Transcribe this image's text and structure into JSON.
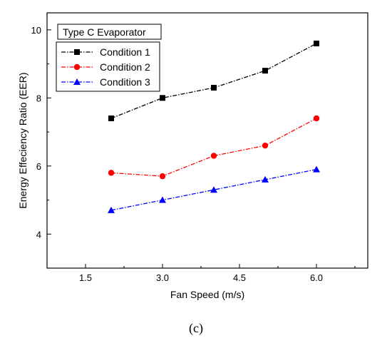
{
  "caption": "(c)",
  "chart_data": {
    "type": "line",
    "title": "",
    "panel_label": "Type C Evaporator",
    "xlabel": "Fan Speed (m/s)",
    "ylabel": "Energy Effeciency Ratio (EER)",
    "xlim": [
      0.75,
      7.0
    ],
    "ylim": [
      3.0,
      10.5
    ],
    "xticks": [
      1.5,
      3.0,
      4.5,
      6.0
    ],
    "xtick_labels": [
      "1.5",
      "3.0",
      "4.5",
      "6.0"
    ],
    "yticks": [
      4,
      6,
      8,
      10
    ],
    "ytick_labels": [
      "4",
      "6",
      "8",
      "10"
    ],
    "grid": false,
    "legend_position": "top-left",
    "x": [
      2,
      3,
      4,
      5,
      6
    ],
    "series": [
      {
        "name": "Condition 1",
        "values": [
          7.4,
          8.0,
          8.3,
          8.8,
          9.6
        ],
        "color": "#000000",
        "marker": "square"
      },
      {
        "name": "Condition 2",
        "values": [
          5.8,
          5.7,
          6.3,
          6.6,
          7.4
        ],
        "color": "#ff0000",
        "marker": "circle"
      },
      {
        "name": "Condition 3",
        "values": [
          4.7,
          5.0,
          5.3,
          5.6,
          5.9
        ],
        "color": "#0000ff",
        "marker": "triangle"
      }
    ]
  }
}
